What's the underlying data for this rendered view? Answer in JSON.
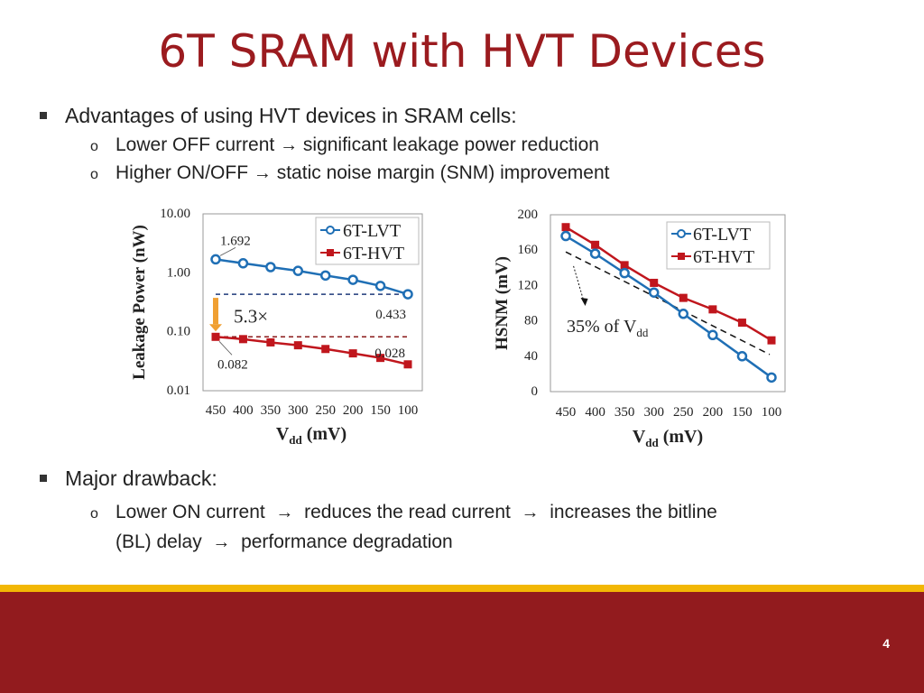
{
  "slide": {
    "title": "6T SRAM with HVT Devices",
    "bullet1": "Advantages of using HVT devices in SRAM cells:",
    "bullet1_sub1_a": "Lower OFF current",
    "bullet1_sub1_b": "significant leakage power reduction",
    "bullet1_sub2_a": "Higher ON/OFF",
    "bullet1_sub2_b": "static noise margin (SNM) improvement",
    "bullet2": "Major drawback:",
    "bullet2_sub1_a": "Lower ON current",
    "bullet2_sub1_b": "reduces the read current",
    "bullet2_sub1_c": "increases the bitline",
    "bullet2_sub1_d": "(BL) delay",
    "bullet2_sub1_e": "performance degradation",
    "arrow_glyph": "→",
    "sub_marker": "o",
    "page_number": "4"
  },
  "colors": {
    "title": "#9b1b1f",
    "lvt": "#1f6fb5",
    "hvt": "#c0161d",
    "footer": "#921b1e",
    "footer_stripe": "#f2b705"
  },
  "chart_data": [
    {
      "type": "line",
      "ylabel": "Leakage Power (nW)",
      "xlabel_main": "V",
      "xlabel_sub": "dd",
      "xlabel_unit": "(mV)",
      "yscale": "log",
      "ylim": [
        0.01,
        10
      ],
      "y_ticks": [
        "10.00",
        "1.00",
        "0.10",
        "0.01"
      ],
      "x_ticks": [
        "450",
        "400",
        "350",
        "300",
        "250",
        "200",
        "150",
        "100"
      ],
      "x": [
        450,
        400,
        350,
        300,
        250,
        200,
        150,
        100
      ],
      "legend_position": "top-right",
      "series": [
        {
          "name": "6T-LVT",
          "marker": "circle",
          "values": [
            1.692,
            1.45,
            1.25,
            1.08,
            0.9,
            0.76,
            0.6,
            0.433
          ]
        },
        {
          "name": "6T-HVT",
          "marker": "square",
          "values": [
            0.082,
            0.075,
            0.066,
            0.059,
            0.051,
            0.043,
            0.036,
            0.028
          ]
        }
      ],
      "annotations": {
        "lvt_first": "1.692",
        "lvt_last": "0.433",
        "hvt_first": "0.082",
        "hvt_last": "0.028",
        "ratio": "5.3×"
      }
    },
    {
      "type": "line",
      "ylabel": "HSNM (mV)",
      "xlabel_main": "V",
      "xlabel_sub": "dd",
      "xlabel_unit": "(mV)",
      "ylim": [
        0,
        200
      ],
      "y_ticks": [
        "200",
        "160",
        "120",
        "80",
        "40",
        "0"
      ],
      "x_ticks": [
        "450",
        "400",
        "350",
        "300",
        "250",
        "200",
        "150",
        "100"
      ],
      "x": [
        450,
        400,
        350,
        300,
        250,
        200,
        150,
        100
      ],
      "legend_position": "top-right",
      "series": [
        {
          "name": "6T-LVT",
          "marker": "circle",
          "values": [
            176,
            156,
            134,
            112,
            88,
            64,
            40,
            16
          ]
        },
        {
          "name": "6T-HVT",
          "marker": "square",
          "values": [
            186,
            166,
            143,
            123,
            106,
            93,
            78,
            58
          ]
        }
      ],
      "annotations": {
        "pct_main": "35% of V",
        "pct_sub": "dd"
      }
    }
  ]
}
